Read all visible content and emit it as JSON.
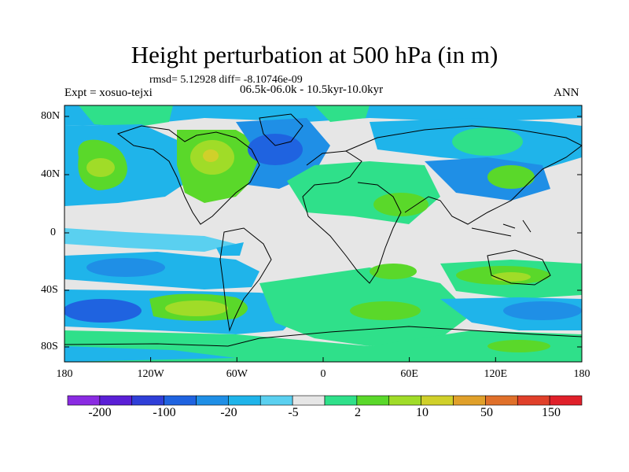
{
  "title": "Height perturbation at 500 hPa (in m)",
  "stats": "rmsd= 5.12928 diff= -8.10746e-09",
  "experiment": "Expt = xosuo-tejxi",
  "period": "06.5k-06.0k - 10.5kyr-10.0kyr",
  "season": "ANN",
  "lat_ticks": [
    "80N",
    "40N",
    "0",
    "40S",
    "80S"
  ],
  "lon_ticks": [
    "180",
    "120W",
    "60W",
    "0",
    "60E",
    "120E",
    "180"
  ],
  "colorbar": {
    "labels": [
      "-200",
      "-100",
      "-20",
      "-5",
      "2",
      "10",
      "50",
      "150"
    ],
    "colors": [
      "#8a2be2",
      "#5a1fd6",
      "#2f3fd8",
      "#1f63e0",
      "#1f8fe6",
      "#1fb4ea",
      "#5ad0f0",
      "#e6e6e6",
      "#2fe08a",
      "#5ad82a",
      "#a0dc28",
      "#d0d02a",
      "#e0a02a",
      "#e0702a",
      "#e0402a",
      "#e0202a"
    ]
  },
  "palette": {
    "neutral": "#e6e6e6",
    "light_blue": "#5ad0f0",
    "mid_blue": "#1fb4ea",
    "blue": "#1f8fe6",
    "deep_blue": "#1f63e0",
    "mint": "#2fe08a",
    "green": "#5ad82a",
    "yellow_green": "#a0dc28",
    "yellow": "#d0d02a"
  }
}
